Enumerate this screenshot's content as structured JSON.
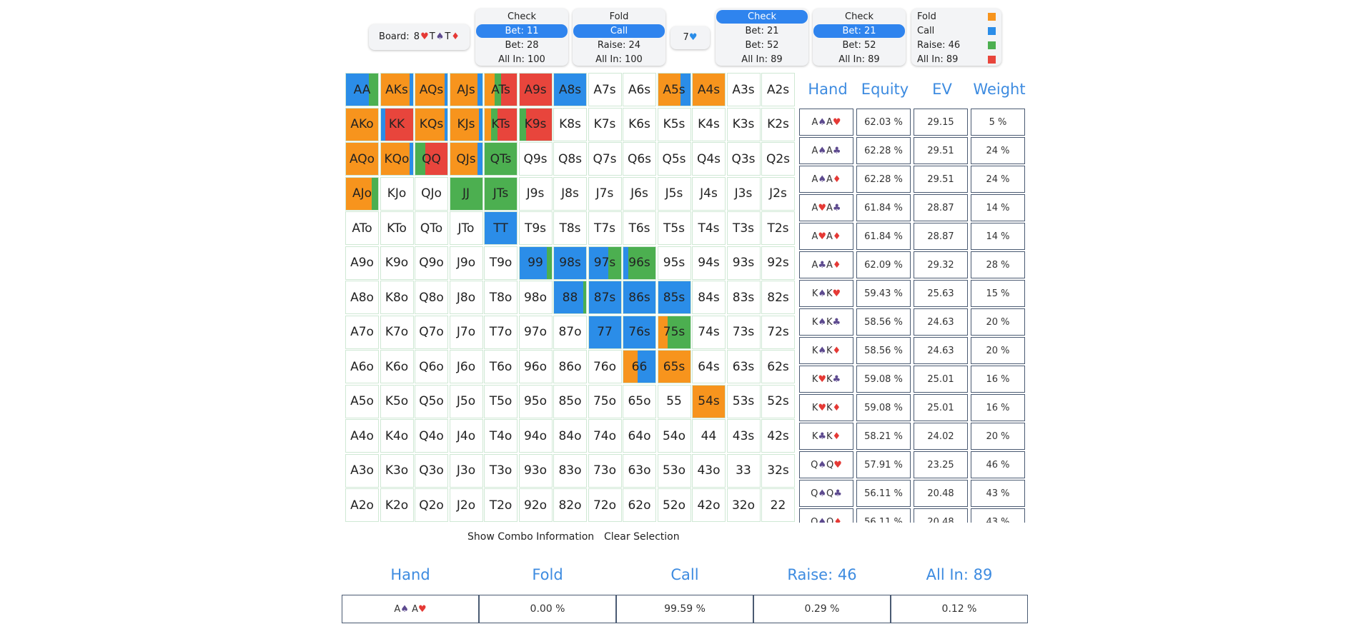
{
  "board": {
    "label": "Board:",
    "cards": [
      {
        "rank": "8",
        "suit": "h",
        "sym": "♥"
      },
      {
        "rank": "T",
        "suit": "s",
        "sym": "♠"
      },
      {
        "rank": "T",
        "suit": "d",
        "sym": "♦"
      }
    ]
  },
  "action_cards": [
    {
      "lines": [
        "Check",
        "Bet: 11",
        "Bet: 28",
        "All In: 100"
      ],
      "selected": 1
    },
    {
      "lines": [
        "Fold",
        "Call",
        "Raise: 24",
        "All In: 100"
      ],
      "selected": 1
    },
    {
      "lines": [
        "Check",
        "Bet: 21",
        "Bet: 52",
        "All In: 89"
      ],
      "selected": 0
    },
    {
      "lines": [
        "Check",
        "Bet: 21",
        "Bet: 52",
        "All In: 89"
      ],
      "selected": 1
    }
  ],
  "turn_card": {
    "rank": "7",
    "suit": "h",
    "sym": "♥"
  },
  "legend": [
    {
      "label": "Fold",
      "color": "#f7941d"
    },
    {
      "label": "Call",
      "color": "#2b8de8"
    },
    {
      "label": "Raise: 46",
      "color": "#4caf50"
    },
    {
      "label": "All In: 89",
      "color": "#e8453c"
    }
  ],
  "colors": {
    "fold": "#f7941d",
    "call": "#2b8de8",
    "raise": "#4caf50",
    "allin": "#e8453c"
  },
  "grid_rows": [
    [
      "AA",
      "AKs",
      "AQs",
      "AJs",
      "ATs",
      "A9s",
      "A8s",
      "A7s",
      "A6s",
      "A5s",
      "A4s",
      "A3s",
      "A2s"
    ],
    [
      "AKo",
      "KK",
      "KQs",
      "KJs",
      "KTs",
      "K9s",
      "K8s",
      "K7s",
      "K6s",
      "K5s",
      "K4s",
      "K3s",
      "K2s"
    ],
    [
      "AQo",
      "KQo",
      "QQ",
      "QJs",
      "QTs",
      "Q9s",
      "Q8s",
      "Q7s",
      "Q6s",
      "Q5s",
      "Q4s",
      "Q3s",
      "Q2s"
    ],
    [
      "AJo",
      "KJo",
      "QJo",
      "JJ",
      "JTs",
      "J9s",
      "J8s",
      "J7s",
      "J6s",
      "J5s",
      "J4s",
      "J3s",
      "J2s"
    ],
    [
      "ATo",
      "KTo",
      "QTo",
      "JTo",
      "TT",
      "T9s",
      "T8s",
      "T7s",
      "T6s",
      "T5s",
      "T4s",
      "T3s",
      "T2s"
    ],
    [
      "A9o",
      "K9o",
      "Q9o",
      "J9o",
      "T9o",
      "99",
      "98s",
      "97s",
      "96s",
      "95s",
      "94s",
      "93s",
      "92s"
    ],
    [
      "A8o",
      "K8o",
      "Q8o",
      "J8o",
      "T8o",
      "98o",
      "88",
      "87s",
      "86s",
      "85s",
      "84s",
      "83s",
      "82s"
    ],
    [
      "A7o",
      "K7o",
      "Q7o",
      "J7o",
      "T7o",
      "97o",
      "87o",
      "77",
      "76s",
      "75s",
      "74s",
      "73s",
      "72s"
    ],
    [
      "A6o",
      "K6o",
      "Q6o",
      "J6o",
      "T6o",
      "96o",
      "86o",
      "76o",
      "66",
      "65s",
      "64s",
      "63s",
      "62s"
    ],
    [
      "A5o",
      "K5o",
      "Q5o",
      "J5o",
      "T5o",
      "95o",
      "85o",
      "75o",
      "65o",
      "55",
      "54s",
      "53s",
      "52s"
    ],
    [
      "A4o",
      "K4o",
      "Q4o",
      "J4o",
      "T4o",
      "94o",
      "84o",
      "74o",
      "64o",
      "54o",
      "44",
      "43s",
      "42s"
    ],
    [
      "A3o",
      "K3o",
      "Q3o",
      "J3o",
      "T3o",
      "93o",
      "83o",
      "73o",
      "63o",
      "53o",
      "43o",
      "33",
      "32s"
    ],
    [
      "A2o",
      "K2o",
      "Q2o",
      "J2o",
      "T2o",
      "92o",
      "82o",
      "72o",
      "62o",
      "52o",
      "42o",
      "32o",
      "22"
    ]
  ],
  "grid_mix": {
    "AA": {
      "call": 0.72,
      "raise": 0.28
    },
    "AKs": {
      "fold": 0.9,
      "call": 0.1
    },
    "AQs": {
      "fold": 0.9,
      "call": 0.1
    },
    "AJs": {
      "fold": 0.85,
      "call": 0.15
    },
    "ATs": {
      "fold": 0.3,
      "raise": 0.2,
      "allin": 0.5
    },
    "A9s": {
      "allin": 1.0
    },
    "A8s": {
      "call": 1.0
    },
    "A5s": {
      "fold": 0.7,
      "call": 0.3
    },
    "A4s": {
      "fold": 1.0
    },
    "AKo": {
      "fold": 1.0
    },
    "KK": {
      "call": 0.15,
      "allin": 0.85
    },
    "KQs": {
      "fold": 0.9,
      "call": 0.1
    },
    "KJs": {
      "fold": 0.9,
      "call": 0.1
    },
    "KTs": {
      "fold": 0.2,
      "raise": 0.2,
      "allin": 0.6
    },
    "K9s": {
      "raise": 0.2,
      "allin": 0.8
    },
    "AQo": {
      "fold": 1.0
    },
    "KQo": {
      "fold": 0.9,
      "call": 0.1
    },
    "QQ": {
      "raise": 0.3,
      "allin": 0.7
    },
    "QJs": {
      "fold": 0.85,
      "call": 0.15
    },
    "QTs": {
      "raise": 1.0
    },
    "AJo": {
      "fold": 0.8,
      "raise": 0.2
    },
    "JJ": {
      "raise": 1.0
    },
    "JTs": {
      "raise": 1.0
    },
    "TT": {
      "call": 1.0
    },
    "99": {
      "call": 0.85,
      "raise": 0.15
    },
    "98s": {
      "call": 1.0
    },
    "97s": {
      "call": 0.6,
      "raise": 0.4
    },
    "96s": {
      "call": 0.15,
      "raise": 0.85
    },
    "88": {
      "call": 0.9,
      "raise": 0.1
    },
    "87s": {
      "call": 1.0
    },
    "86s": {
      "call": 1.0
    },
    "85s": {
      "call": 1.0
    },
    "77": {
      "call": 1.0
    },
    "76s": {
      "call": 1.0
    },
    "75s": {
      "fold": 0.3,
      "raise": 0.7
    },
    "66": {
      "fold": 0.45,
      "call": 0.55
    },
    "65s": {
      "fold": 1.0
    },
    "54s": {
      "fold": 1.0
    }
  },
  "side_table": {
    "headers": [
      "Hand",
      "Equity",
      "EV",
      "Weight"
    ],
    "rows": [
      {
        "c1": "A",
        "s1": "s",
        "y1": "♠",
        "c2": "A",
        "s2": "h",
        "y2": "♥",
        "equity": "62.03 %",
        "ev": "29.15",
        "weight": "5 %"
      },
      {
        "c1": "A",
        "s1": "s",
        "y1": "♠",
        "c2": "A",
        "s2": "c",
        "y2": "♣",
        "equity": "62.28 %",
        "ev": "29.51",
        "weight": "24 %"
      },
      {
        "c1": "A",
        "s1": "s",
        "y1": "♠",
        "c2": "A",
        "s2": "d",
        "y2": "♦",
        "equity": "62.28 %",
        "ev": "29.51",
        "weight": "24 %"
      },
      {
        "c1": "A",
        "s1": "h",
        "y1": "♥",
        "c2": "A",
        "s2": "c",
        "y2": "♣",
        "equity": "61.84 %",
        "ev": "28.87",
        "weight": "14 %"
      },
      {
        "c1": "A",
        "s1": "h",
        "y1": "♥",
        "c2": "A",
        "s2": "d",
        "y2": "♦",
        "equity": "61.84 %",
        "ev": "28.87",
        "weight": "14 %"
      },
      {
        "c1": "A",
        "s1": "c",
        "y1": "♣",
        "c2": "A",
        "s2": "d",
        "y2": "♦",
        "equity": "62.09 %",
        "ev": "29.32",
        "weight": "28 %"
      },
      {
        "c1": "K",
        "s1": "s",
        "y1": "♠",
        "c2": "K",
        "s2": "h",
        "y2": "♥",
        "equity": "59.43 %",
        "ev": "25.63",
        "weight": "15 %"
      },
      {
        "c1": "K",
        "s1": "s",
        "y1": "♠",
        "c2": "K",
        "s2": "c",
        "y2": "♣",
        "equity": "58.56 %",
        "ev": "24.63",
        "weight": "20 %"
      },
      {
        "c1": "K",
        "s1": "s",
        "y1": "♠",
        "c2": "K",
        "s2": "d",
        "y2": "♦",
        "equity": "58.56 %",
        "ev": "24.63",
        "weight": "20 %"
      },
      {
        "c1": "K",
        "s1": "h",
        "y1": "♥",
        "c2": "K",
        "s2": "c",
        "y2": "♣",
        "equity": "59.08 %",
        "ev": "25.01",
        "weight": "16 %"
      },
      {
        "c1": "K",
        "s1": "h",
        "y1": "♥",
        "c2": "K",
        "s2": "d",
        "y2": "♦",
        "equity": "59.08 %",
        "ev": "25.01",
        "weight": "16 %"
      },
      {
        "c1": "K",
        "s1": "c",
        "y1": "♣",
        "c2": "K",
        "s2": "d",
        "y2": "♦",
        "equity": "58.21 %",
        "ev": "24.02",
        "weight": "20 %"
      },
      {
        "c1": "Q",
        "s1": "s",
        "y1": "♠",
        "c2": "Q",
        "s2": "h",
        "y2": "♥",
        "equity": "57.91 %",
        "ev": "23.25",
        "weight": "46 %"
      },
      {
        "c1": "Q",
        "s1": "s",
        "y1": "♠",
        "c2": "Q",
        "s2": "c",
        "y2": "♣",
        "equity": "56.11 %",
        "ev": "20.48",
        "weight": "43 %"
      },
      {
        "c1": "Q",
        "s1": "s",
        "y1": "♠",
        "c2": "Q",
        "s2": "d",
        "y2": "♦",
        "equity": "56.11 %",
        "ev": "20.48",
        "weight": "43 %"
      }
    ]
  },
  "buttons": {
    "show_combo": "Show Combo Information",
    "clear_selection": "Clear Selection"
  },
  "bottom_table": {
    "headers": [
      "Hand",
      "Fold",
      "Call",
      "Raise: 46",
      "All In: 89"
    ],
    "row": {
      "c1": "A",
      "s1": "s",
      "y1": "♠",
      "c2": "A",
      "s2": "h",
      "y2": "♥",
      "fold": "0.00 %",
      "call": "99.59 %",
      "raise": "0.29 %",
      "allin": "0.12 %"
    }
  }
}
